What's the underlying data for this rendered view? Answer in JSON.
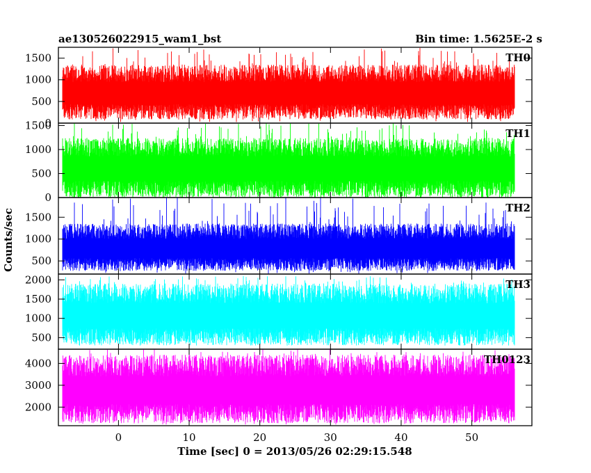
{
  "chart_data": {
    "type": "line",
    "title": "ae130526022915_wam1_bst",
    "bin_time_label": "Bin time: 1.5625E-2 s",
    "xlabel": "Time [sec] 0 = 2013/05/26 02:29:15.548",
    "ylabel": "Counts/sec",
    "xlim": [
      -8.5,
      58.5
    ],
    "x_ticks": [
      0,
      10,
      20,
      30,
      40,
      50
    ],
    "x_tick_labels": [
      "0",
      "10",
      "20",
      "30",
      "40",
      "50"
    ],
    "data_range_x": [
      -7.9,
      56.0
    ],
    "grid": false,
    "panels": [
      {
        "name": "TH0",
        "color": "#ff0000",
        "ylim": [
          0,
          1750
        ],
        "y_ticks": [
          0,
          500,
          1000,
          1500
        ],
        "y_tick_labels": [
          "0",
          "500",
          "1000",
          "1500"
        ],
        "typical_low": 260,
        "typical_high": 1150,
        "min": 20,
        "max": 1750,
        "mean": 700
      },
      {
        "name": "TH1",
        "color": "#00ff00",
        "ylim": [
          0,
          1550
        ],
        "y_ticks": [
          0,
          500,
          1000,
          1500
        ],
        "y_tick_labels": [
          "0",
          "500",
          "1000",
          "1500"
        ],
        "typical_low": 170,
        "typical_high": 1050,
        "min": 20,
        "max": 1550,
        "mean": 620
      },
      {
        "name": "TH2",
        "color": "#0000ff",
        "ylim": [
          200,
          1950
        ],
        "y_ticks": [
          500,
          1000,
          1500
        ],
        "y_tick_labels": [
          "500",
          "1000",
          "1500"
        ],
        "typical_low": 420,
        "typical_high": 1180,
        "min": 210,
        "max": 1950,
        "mean": 790
      },
      {
        "name": "TH3",
        "color": "#00ffff",
        "ylim": [
          200,
          2150
        ],
        "y_ticks": [
          500,
          1000,
          1500,
          2000
        ],
        "y_tick_labels": [
          "500",
          "1000",
          "1500",
          "2000"
        ],
        "typical_low": 520,
        "typical_high": 1650,
        "min": 300,
        "max": 2100,
        "mean": 1080
      },
      {
        "name": "TH0123",
        "color": "#ff00ff",
        "ylim": [
          1150,
          4650
        ],
        "y_ticks": [
          2000,
          3000,
          4000
        ],
        "y_tick_labels": [
          "2000",
          "3000",
          "4000"
        ],
        "typical_low": 1700,
        "typical_high": 3900,
        "min": 1200,
        "max": 4650,
        "mean": 2800
      }
    ]
  }
}
